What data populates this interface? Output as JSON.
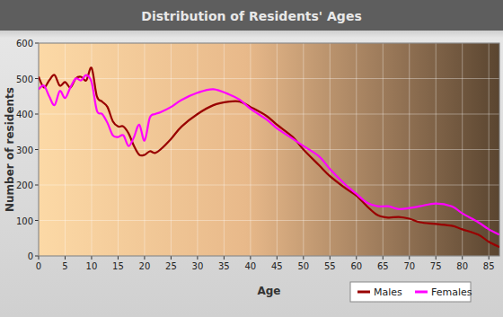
{
  "chart_data": {
    "type": "line",
    "title": "Distribution of Residents' Ages",
    "x_label": "Age",
    "y_label": "Number of residents",
    "x": [
      0,
      1,
      2,
      3,
      4,
      5,
      6,
      7,
      8,
      9,
      10,
      11,
      12,
      13,
      14,
      15,
      16,
      17,
      18,
      19,
      20,
      21,
      22,
      23,
      25,
      27,
      30,
      33,
      36,
      38,
      40,
      43,
      45,
      48,
      50,
      53,
      55,
      58,
      60,
      62,
      64,
      66,
      68,
      70,
      72,
      75,
      78,
      80,
      83,
      85,
      87
    ],
    "series": [
      {
        "name": "Males",
        "color": "#990000",
        "values": [
          505,
          475,
          495,
          510,
          480,
          490,
          475,
          500,
          505,
          495,
          530,
          450,
          435,
          420,
          380,
          365,
          365,
          345,
          310,
          285,
          285,
          295,
          290,
          300,
          330,
          365,
          400,
          425,
          435,
          435,
          420,
          395,
          370,
          335,
          300,
          255,
          225,
          190,
          170,
          140,
          115,
          108,
          110,
          105,
          95,
          90,
          85,
          75,
          60,
          40,
          25
        ]
      },
      {
        "name": "Females",
        "color": "#ff00ff",
        "values": [
          470,
          480,
          450,
          425,
          465,
          445,
          475,
          500,
          495,
          510,
          490,
          410,
          400,
          375,
          340,
          335,
          340,
          310,
          335,
          370,
          325,
          390,
          400,
          405,
          420,
          440,
          460,
          470,
          455,
          440,
          415,
          385,
          360,
          330,
          310,
          280,
          245,
          200,
          175,
          150,
          140,
          140,
          132,
          135,
          140,
          148,
          140,
          120,
          95,
          75,
          60
        ]
      }
    ],
    "xlim": [
      0,
      87
    ],
    "xticks": [
      0,
      5,
      10,
      15,
      20,
      25,
      30,
      35,
      40,
      45,
      50,
      55,
      60,
      65,
      70,
      75,
      80,
      85
    ],
    "ylim": [
      0,
      600
    ],
    "yticks": [
      0,
      100,
      200,
      300,
      400,
      500,
      600
    ],
    "grid": true,
    "legend": "bottom-right"
  }
}
